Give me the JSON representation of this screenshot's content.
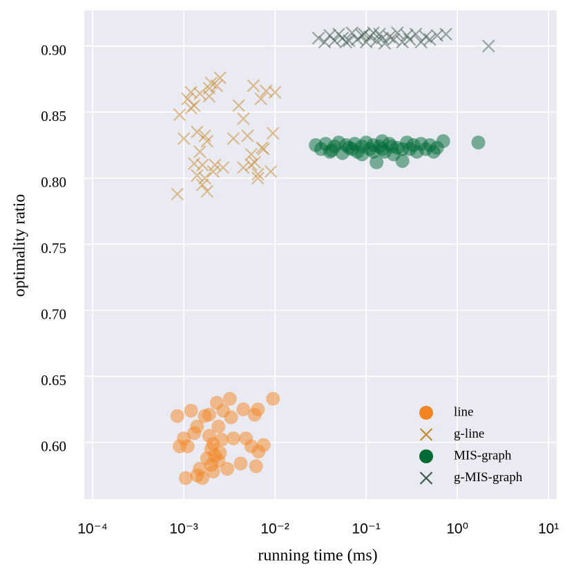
{
  "chart_data": {
    "type": "scatter",
    "xlabel": "running time (ms)",
    "ylabel": "optimality ratio",
    "xlog": true,
    "grid": true,
    "legend": "lower right",
    "xlim": [
      8.1e-05,
      12.3
    ],
    "ylim": [
      0.557,
      0.927
    ],
    "xticks": [
      {
        "value": 0.0001,
        "label": "10⁻⁴"
      },
      {
        "value": 0.001,
        "label": "10⁻³"
      },
      {
        "value": 0.01,
        "label": "10⁻²"
      },
      {
        "value": 0.1,
        "label": "10⁻¹"
      },
      {
        "value": 1,
        "label": "10⁰"
      },
      {
        "value": 10,
        "label": "10¹"
      }
    ],
    "yticks": [
      {
        "value": 0.6,
        "label": "0.60"
      },
      0.65,
      {
        "value": 0.7,
        "label": "0.70"
      },
      0.75,
      {
        "value": 0.8,
        "label": "0.80"
      },
      0.85,
      {
        "value": 0.9,
        "label": "0.90"
      }
    ],
    "series": [
      {
        "name": "line",
        "color": "#f28522",
        "marker": "o",
        "x": [
          0.00085,
          0.0009,
          0.001,
          0.0011,
          0.00105,
          0.0012,
          0.0013,
          0.0014,
          0.0015,
          0.0016,
          0.0017,
          0.0018,
          0.0019,
          0.002,
          0.002,
          0.0021,
          0.0022,
          0.0023,
          0.0024,
          0.0025,
          0.0026,
          0.0027,
          0.003,
          0.0032,
          0.0033,
          0.0035,
          0.0042,
          0.0045,
          0.0048,
          0.0055,
          0.006,
          0.0062,
          0.0065,
          0.0066,
          0.0075,
          0.0095,
          0.0021,
          0.0019,
          0.0024,
          0.0014
        ],
        "values": [
          0.62,
          0.597,
          0.603,
          0.597,
          0.573,
          0.624,
          0.607,
          0.612,
          0.58,
          0.573,
          0.62,
          0.588,
          0.621,
          0.595,
          0.583,
          0.599,
          0.59,
          0.63,
          0.586,
          0.592,
          0.602,
          0.624,
          0.58,
          0.633,
          0.619,
          0.603,
          0.584,
          0.625,
          0.603,
          0.597,
          0.621,
          0.582,
          0.625,
          0.593,
          0.598,
          0.633,
          0.578,
          0.605,
          0.612,
          0.575
        ]
      },
      {
        "name": "g-line",
        "color": "#c58a2c",
        "marker": "x",
        "x": [
          0.00085,
          0.0009,
          0.001,
          0.0011,
          0.0012,
          0.0013,
          0.0014,
          0.0015,
          0.0016,
          0.0017,
          0.0018,
          0.0019,
          0.002,
          0.0021,
          0.0022,
          0.0023,
          0.0025,
          0.0027,
          0.0016,
          0.0018,
          0.0019,
          0.0014,
          0.0013,
          0.0017,
          0.0012,
          0.0015,
          0.0035,
          0.004,
          0.0045,
          0.005,
          0.0055,
          0.006,
          0.0065,
          0.007,
          0.0075,
          0.008,
          0.009,
          0.0095,
          0.01,
          0.0065,
          0.0058,
          0.0045,
          0.0055,
          0.0072
        ],
        "values": [
          0.788,
          0.848,
          0.83,
          0.86,
          0.865,
          0.855,
          0.835,
          0.82,
          0.81,
          0.8,
          0.828,
          0.868,
          0.872,
          0.805,
          0.81,
          0.87,
          0.876,
          0.808,
          0.795,
          0.79,
          0.862,
          0.802,
          0.811,
          0.832,
          0.853,
          0.864,
          0.83,
          0.855,
          0.845,
          0.832,
          0.818,
          0.812,
          0.803,
          0.86,
          0.822,
          0.866,
          0.805,
          0.834,
          0.865,
          0.8,
          0.87,
          0.808,
          0.81,
          0.823
        ]
      },
      {
        "name": "MIS-graph",
        "color": "#006b35",
        "marker": "o",
        "x": [
          0.028,
          0.032,
          0.036,
          0.04,
          0.045,
          0.05,
          0.055,
          0.06,
          0.07,
          0.075,
          0.08,
          0.09,
          0.1,
          0.11,
          0.12,
          0.13,
          0.14,
          0.15,
          0.16,
          0.18,
          0.2,
          0.22,
          0.25,
          0.28,
          0.3,
          0.33,
          0.36,
          0.4,
          0.45,
          0.5,
          0.55,
          0.6,
          0.7,
          0.12,
          0.15,
          0.09,
          0.065,
          0.25,
          0.19,
          0.042,
          1.7
        ],
        "values": [
          0.825,
          0.822,
          0.826,
          0.82,
          0.824,
          0.827,
          0.819,
          0.825,
          0.822,
          0.826,
          0.82,
          0.824,
          0.827,
          0.822,
          0.825,
          0.812,
          0.824,
          0.828,
          0.82,
          0.826,
          0.818,
          0.823,
          0.813,
          0.827,
          0.822,
          0.825,
          0.82,
          0.826,
          0.822,
          0.825,
          0.82,
          0.823,
          0.828,
          0.82,
          0.822,
          0.818,
          0.823,
          0.822,
          0.824,
          0.821,
          0.827
        ]
      },
      {
        "name": "g-MIS-graph",
        "color": "#3d5a4a",
        "marker": "x",
        "x": [
          0.03,
          0.035,
          0.04,
          0.045,
          0.05,
          0.055,
          0.06,
          0.07,
          0.08,
          0.09,
          0.1,
          0.11,
          0.12,
          0.13,
          0.14,
          0.16,
          0.18,
          0.2,
          0.22,
          0.25,
          0.28,
          0.3,
          0.35,
          0.4,
          0.45,
          0.5,
          0.6,
          0.75,
          0.065,
          0.15,
          0.095,
          2.2
        ],
        "values": [
          0.906,
          0.903,
          0.908,
          0.904,
          0.909,
          0.906,
          0.903,
          0.91,
          0.905,
          0.908,
          0.903,
          0.907,
          0.91,
          0.904,
          0.909,
          0.902,
          0.907,
          0.905,
          0.91,
          0.903,
          0.908,
          0.905,
          0.909,
          0.903,
          0.907,
          0.905,
          0.908,
          0.909,
          0.904,
          0.906,
          0.909,
          0.9
        ]
      }
    ]
  }
}
